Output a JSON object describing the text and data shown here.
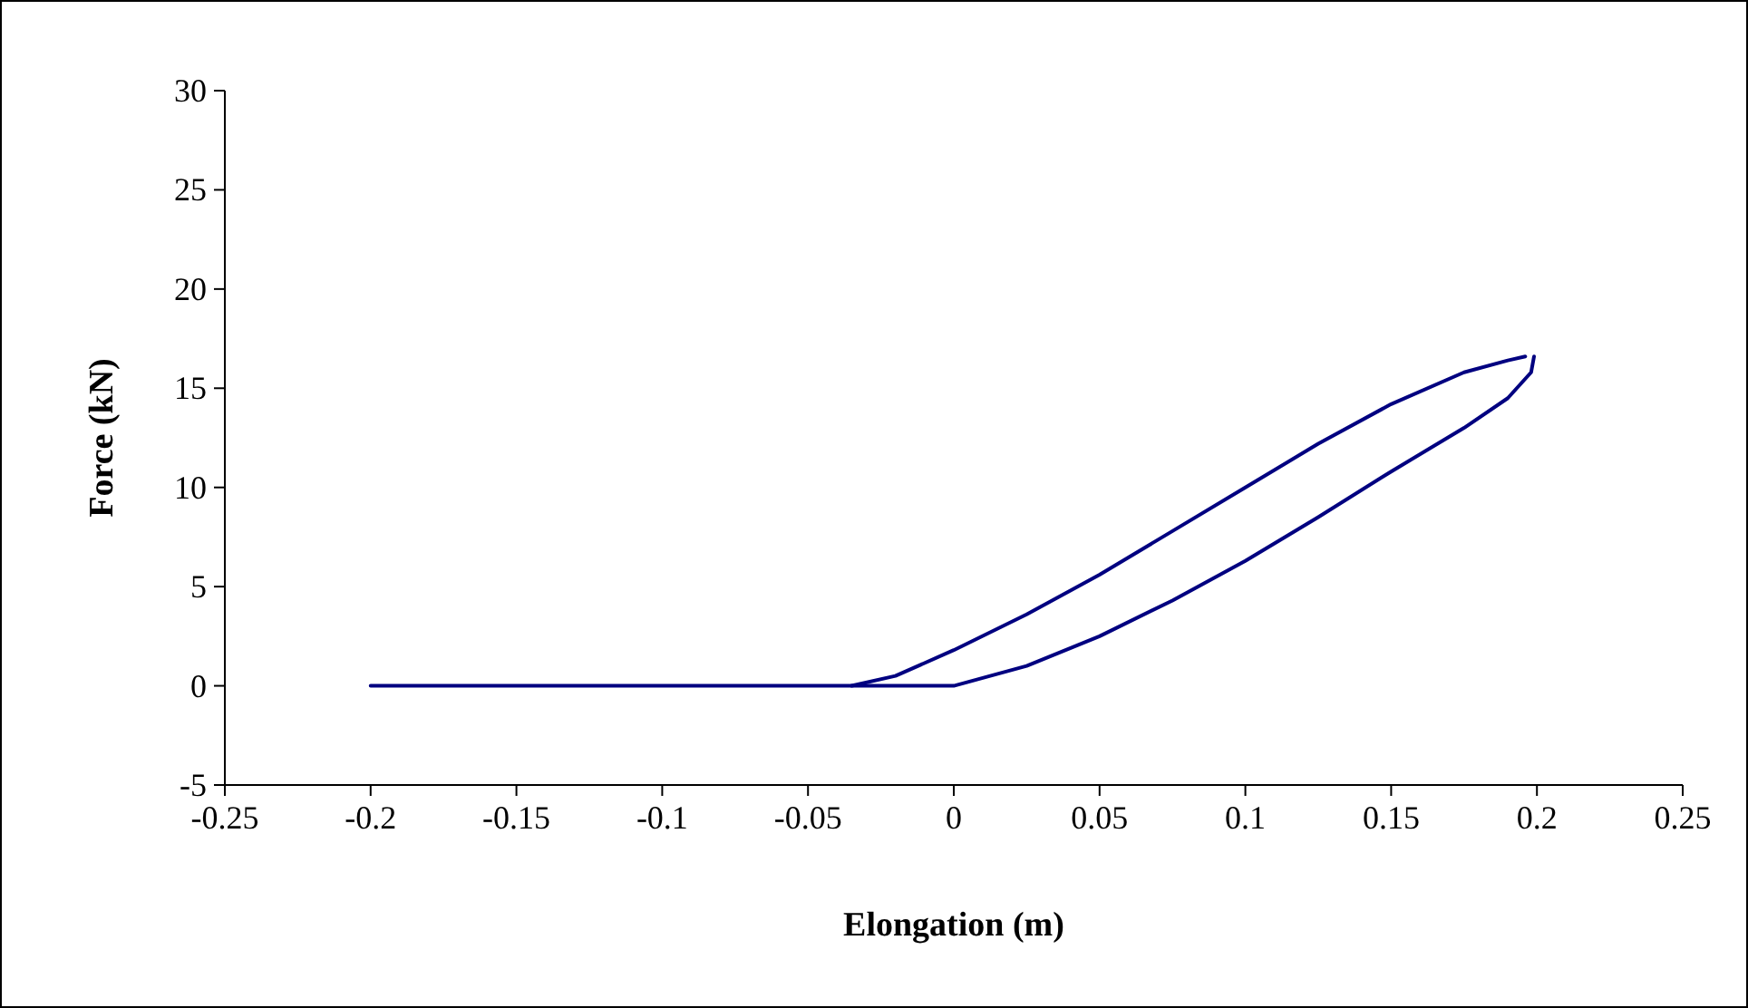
{
  "chart_data": {
    "type": "line",
    "xlabel": "Elongation (m)",
    "ylabel": "Force (kN)",
    "xlim": [
      -0.25,
      0.25
    ],
    "xticks": [
      -0.25,
      -0.2,
      -0.15,
      -0.1,
      -0.05,
      0,
      0.05,
      0.1,
      0.15,
      0.2,
      0.25
    ],
    "ylim": [
      -5,
      30
    ],
    "yticks": [
      -5,
      0,
      5,
      10,
      15,
      20,
      25,
      30
    ],
    "marker": "none",
    "line_style": "solid",
    "grid": false,
    "series": [
      {
        "color": "#000080",
        "x": [
          -0.2,
          0,
          0.025,
          0.05,
          0.075,
          0.1,
          0.125,
          0.15,
          0.175,
          0.19,
          0.198,
          0.199
        ],
        "values": [
          0,
          0,
          1.0,
          2.5,
          4.3,
          6.3,
          8.5,
          10.8,
          13.0,
          14.5,
          15.8,
          16.6
        ]
      },
      {
        "color": "#000080",
        "x": [
          -0.035,
          -0.02,
          0,
          0.025,
          0.05,
          0.075,
          0.1,
          0.125,
          0.15,
          0.175,
          0.19,
          0.196
        ],
        "values": [
          0,
          0.5,
          1.8,
          3.6,
          5.6,
          7.8,
          10.0,
          12.2,
          14.2,
          15.8,
          16.4,
          16.6
        ]
      }
    ]
  }
}
